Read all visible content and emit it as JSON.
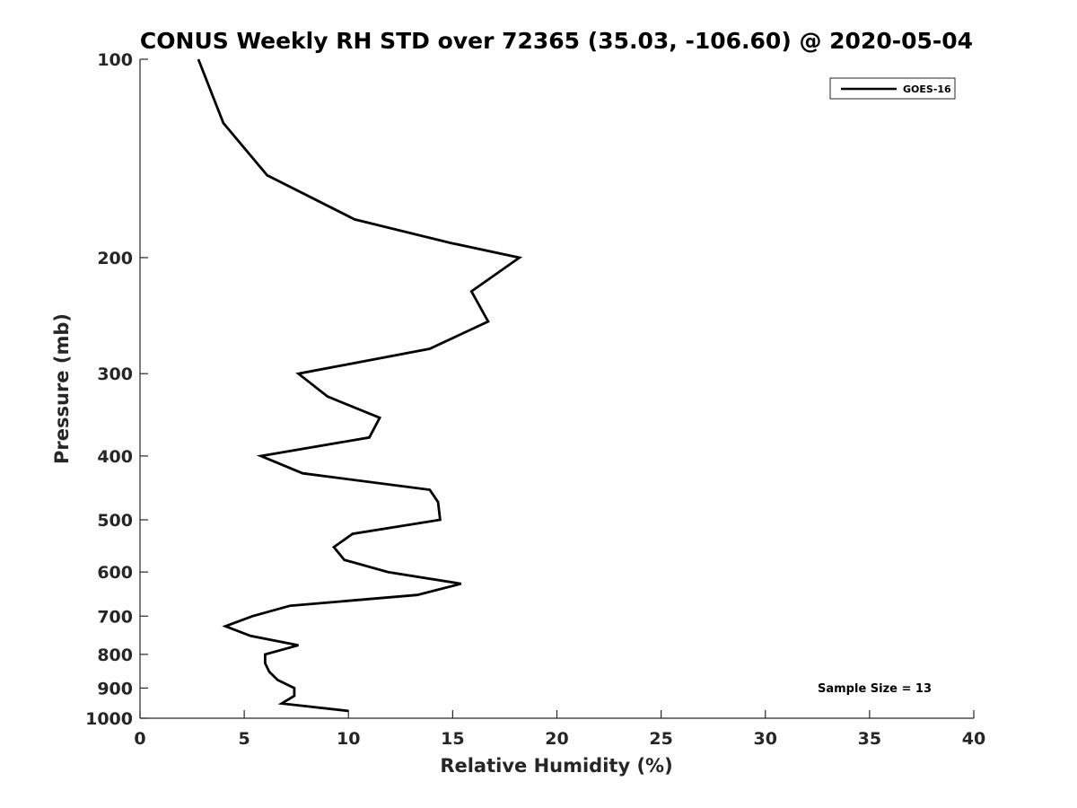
{
  "chart_data": {
    "type": "line",
    "title": "CONUS Weekly RH STD over 72365 (35.03, -106.60) @ 2020-05-04",
    "xlabel": "Relative Humidity (%)",
    "ylabel": "Pressure (mb)",
    "xlim": [
      0,
      40
    ],
    "ylim": [
      100,
      1000
    ],
    "y_scale": "log",
    "y_reversed": true,
    "x_ticks": [
      0,
      5,
      10,
      15,
      20,
      25,
      30,
      35,
      40
    ],
    "x_tick_labels": [
      "0",
      "5",
      "10",
      "15",
      "20",
      "25",
      "30",
      "35",
      "40"
    ],
    "y_ticks": [
      100,
      200,
      300,
      400,
      500,
      600,
      700,
      800,
      900,
      1000
    ],
    "y_tick_labels": [
      "100",
      "200",
      "300",
      "400",
      "500",
      "600",
      "700",
      "800",
      "900",
      "1000"
    ],
    "grid": false,
    "legend_position": "top-right",
    "series": [
      {
        "name": "GOES-16",
        "color": "#000000",
        "points": [
          {
            "x": 2.8,
            "y": 100
          },
          {
            "x": 4.0,
            "y": 125
          },
          {
            "x": 6.1,
            "y": 150
          },
          {
            "x": 10.3,
            "y": 175
          },
          {
            "x": 14.9,
            "y": 190
          },
          {
            "x": 18.2,
            "y": 200
          },
          {
            "x": 15.9,
            "y": 225
          },
          {
            "x": 16.7,
            "y": 250
          },
          {
            "x": 13.9,
            "y": 275
          },
          {
            "x": 7.6,
            "y": 300
          },
          {
            "x": 9.0,
            "y": 325
          },
          {
            "x": 11.5,
            "y": 350
          },
          {
            "x": 11.0,
            "y": 375
          },
          {
            "x": 5.8,
            "y": 400
          },
          {
            "x": 7.8,
            "y": 425
          },
          {
            "x": 13.9,
            "y": 450
          },
          {
            "x": 14.3,
            "y": 470
          },
          {
            "x": 14.4,
            "y": 500
          },
          {
            "x": 10.2,
            "y": 525
          },
          {
            "x": 9.3,
            "y": 550
          },
          {
            "x": 9.8,
            "y": 575
          },
          {
            "x": 11.9,
            "y": 600
          },
          {
            "x": 15.4,
            "y": 625
          },
          {
            "x": 13.3,
            "y": 650
          },
          {
            "x": 7.2,
            "y": 675
          },
          {
            "x": 5.4,
            "y": 700
          },
          {
            "x": 4.1,
            "y": 725
          },
          {
            "x": 5.3,
            "y": 750
          },
          {
            "x": 7.6,
            "y": 775
          },
          {
            "x": 6.0,
            "y": 800
          },
          {
            "x": 6.0,
            "y": 825
          },
          {
            "x": 6.2,
            "y": 850
          },
          {
            "x": 6.6,
            "y": 875
          },
          {
            "x": 7.4,
            "y": 900
          },
          {
            "x": 7.4,
            "y": 925
          },
          {
            "x": 6.8,
            "y": 950
          },
          {
            "x": 10.0,
            "y": 975
          }
        ]
      }
    ],
    "annotations": [
      {
        "text": "Sample Size = 13",
        "x": 35,
        "y": 900
      }
    ]
  }
}
